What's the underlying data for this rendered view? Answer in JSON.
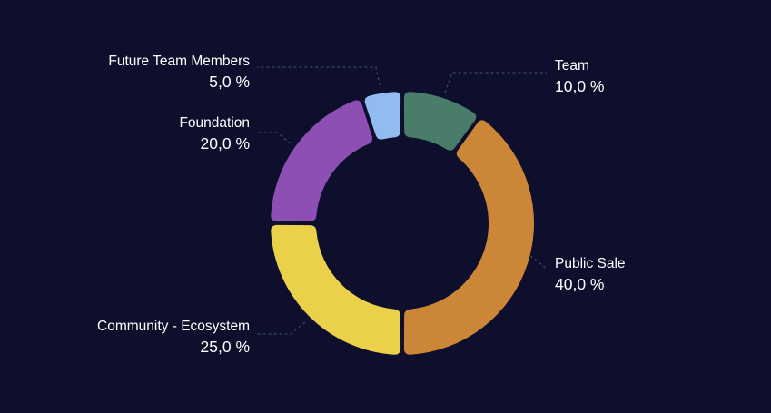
{
  "chart_data": {
    "type": "pie",
    "variant": "donut",
    "categories": [
      "Team",
      "Public Sale",
      "Community - Ecosystem",
      "Foundation",
      "Future Team Members"
    ],
    "values": [
      10.0,
      40.0,
      25.0,
      20.0,
      5.0
    ],
    "value_labels": [
      "10,0 %",
      "40,0 %",
      "25,0 %",
      "20,0 %",
      "5,0 %"
    ],
    "colors": [
      "#4a7c6a",
      "#cc8637",
      "#ebd149",
      "#8e4fb4",
      "#92bbf0"
    ],
    "start": "top, clockwise",
    "legend": "none (labels beside slices with leader lines)"
  },
  "colors": {
    "background": "#0e0f2c",
    "label_text": "#ffffff",
    "leader_line": "#3d4363"
  }
}
